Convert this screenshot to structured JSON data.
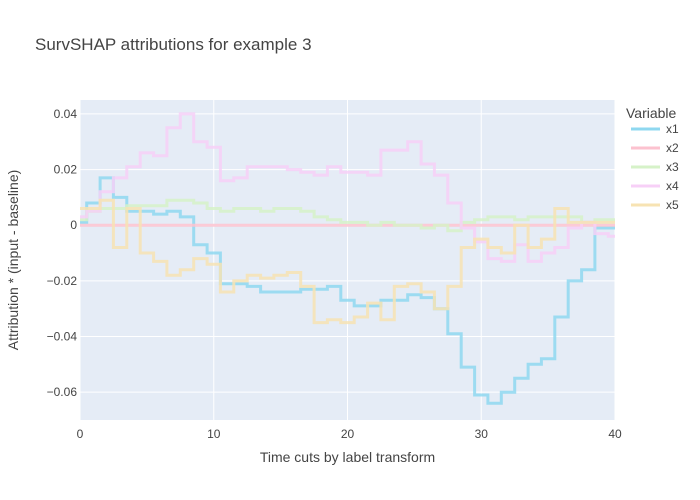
{
  "chart_data": {
    "type": "line",
    "line_shape": "step",
    "title": "SurvSHAP attributions for example 3",
    "xlabel": "Time cuts by label transform",
    "ylabel": "Attribution * (input - baseline)",
    "xlim": [
      0,
      40
    ],
    "ylim": [
      -0.07,
      0.045
    ],
    "x_ticks": [
      0,
      10,
      20,
      30,
      40
    ],
    "y_ticks": [
      -0.06,
      -0.04,
      -0.02,
      0,
      0.02,
      0.04
    ],
    "x_tick_labels": [
      "0",
      "10",
      "20",
      "30",
      "40"
    ],
    "y_tick_labels": [
      "−0.06",
      "−0.04",
      "−0.02",
      "0",
      "0.02",
      "0.04"
    ],
    "grid": true,
    "legend_title": "Variable",
    "legend_position": "right",
    "x": [
      0,
      1,
      2,
      3,
      4,
      5,
      6,
      7,
      8,
      9,
      10,
      11,
      12,
      13,
      14,
      15,
      16,
      17,
      18,
      19,
      20,
      21,
      22,
      23,
      24,
      25,
      26,
      27,
      28,
      29,
      30,
      31,
      32,
      33,
      34,
      35,
      36,
      37,
      38,
      39,
      40
    ],
    "series": [
      {
        "name": "x1",
        "color": "#8fd8f0",
        "values": [
          0.001,
          0.008,
          0.017,
          0.01,
          0.005,
          0.005,
          0.004,
          0.005,
          0.003,
          -0.007,
          -0.01,
          -0.021,
          -0.021,
          -0.022,
          -0.024,
          -0.024,
          -0.024,
          -0.023,
          -0.023,
          -0.022,
          -0.027,
          -0.029,
          -0.029,
          -0.027,
          -0.027,
          -0.025,
          -0.026,
          -0.03,
          -0.039,
          -0.051,
          -0.061,
          -0.064,
          -0.06,
          -0.055,
          -0.05,
          -0.048,
          -0.033,
          -0.02,
          -0.016,
          -0.001,
          -0.001
        ]
      },
      {
        "name": "x2",
        "color": "#fcc2cf",
        "values": [
          0,
          0,
          0,
          0,
          0,
          0,
          0,
          0,
          0,
          0,
          0,
          0,
          0,
          0,
          0,
          0,
          0,
          0,
          0,
          0,
          0,
          0,
          0,
          0,
          0,
          0,
          0,
          0,
          0,
          0,
          0,
          0,
          0,
          0,
          0,
          0,
          0,
          0,
          0,
          0,
          0
        ]
      },
      {
        "name": "x3",
        "color": "#d6f2c8",
        "values": [
          0.002,
          0.005,
          0.006,
          0.006,
          0.007,
          0.007,
          0.007,
          0.009,
          0.009,
          0.008,
          0.006,
          0.005,
          0.006,
          0.006,
          0.005,
          0.006,
          0.006,
          0.005,
          0.003,
          0.002,
          0.001,
          0.001,
          0,
          0.001,
          0,
          0,
          -0.001,
          0,
          -0.002,
          0.001,
          0.002,
          0.003,
          0.003,
          0.002,
          0.003,
          0.003,
          0.003,
          0.003,
          0.001,
          0.002,
          0.002
        ]
      },
      {
        "name": "x4",
        "color": "#f7d0f7",
        "values": [
          0.003,
          0.005,
          0.012,
          0.017,
          0.021,
          0.026,
          0.025,
          0.035,
          0.04,
          0.03,
          0.028,
          0.016,
          0.017,
          0.021,
          0.021,
          0.021,
          0.02,
          0.019,
          0.018,
          0.021,
          0.019,
          0.019,
          0.018,
          0.027,
          0.027,
          0.03,
          0.022,
          0.018,
          0.008,
          -0.001,
          -0.006,
          -0.012,
          -0.013,
          -0.007,
          -0.013,
          -0.01,
          -0.008,
          -0.001,
          0.001,
          -0.003,
          -0.004
        ]
      },
      {
        "name": "x5",
        "color": "#f7e3b3",
        "values": [
          0.006,
          0.006,
          0.009,
          -0.008,
          0.006,
          -0.01,
          -0.013,
          -0.018,
          -0.016,
          -0.012,
          -0.014,
          -0.024,
          -0.02,
          -0.018,
          -0.019,
          -0.018,
          -0.017,
          -0.022,
          -0.035,
          -0.034,
          -0.035,
          -0.033,
          -0.028,
          -0.034,
          -0.022,
          -0.021,
          -0.024,
          -0.03,
          -0.022,
          -0.008,
          -0.005,
          -0.008,
          -0.01,
          0,
          -0.008,
          -0.005,
          0.006,
          0.001,
          0.001,
          0.001,
          0.001
        ]
      }
    ]
  }
}
